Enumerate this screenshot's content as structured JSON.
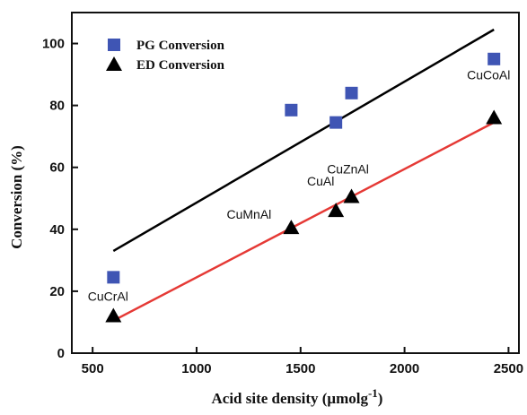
{
  "chart_data": {
    "type": "scatter",
    "xlabel": "Acid site density (μmolg",
    "xlabel_superscript": "-1",
    "xlabel_close": ")",
    "ylabel": "Conversion (%)",
    "xlim": [
      400,
      2550
    ],
    "ylim": [
      0,
      110
    ],
    "xticks": [
      500,
      1000,
      1500,
      2000,
      2500
    ],
    "yticks": [
      0,
      20,
      40,
      60,
      80,
      100
    ],
    "legend_position": "top-left",
    "series": [
      {
        "name": "PG Conversion",
        "marker": "square",
        "color": "#3f55b4",
        "points": [
          {
            "x": 600,
            "y": 24.5
          },
          {
            "x": 1455,
            "y": 78.5
          },
          {
            "x": 1670,
            "y": 74.5
          },
          {
            "x": 1745,
            "y": 84
          },
          {
            "x": 2430,
            "y": 95
          }
        ]
      },
      {
        "name": "ED Conversion",
        "marker": "triangle",
        "color": "#000000",
        "points": [
          {
            "x": 600,
            "y": 12
          },
          {
            "x": 1455,
            "y": 40.5
          },
          {
            "x": 1670,
            "y": 46
          },
          {
            "x": 1745,
            "y": 50.5
          },
          {
            "x": 2430,
            "y": 76
          }
        ]
      }
    ],
    "fit_lines": [
      {
        "color": "#000000",
        "x": [
          600,
          2430
        ],
        "y": [
          33,
          104.5
        ]
      },
      {
        "color": "#e53935",
        "x": [
          600,
          2430
        ],
        "y": [
          10.5,
          74.5
        ]
      }
    ],
    "annotations": [
      {
        "text": "CuCrAl",
        "x": 600,
        "y": 12
      },
      {
        "text": "CuMnAl",
        "x": 1455,
        "y": 40.5
      },
      {
        "text": "CuAl",
        "x": 1670,
        "y": 46
      },
      {
        "text": "CuZnAl",
        "x": 1745,
        "y": 50.5
      },
      {
        "text": "CuCoAl",
        "x": 2430,
        "y": 76
      }
    ]
  }
}
